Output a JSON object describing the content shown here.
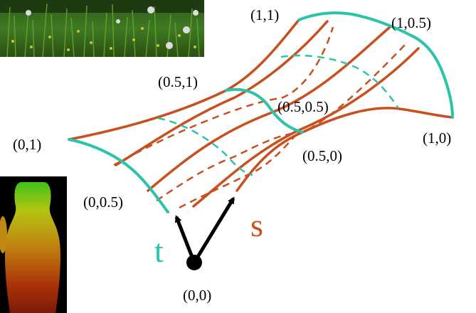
{
  "colors": {
    "s_curve": "#c8501e",
    "t_curve": "#2cc4a8",
    "arrow": "#000000",
    "background": "#ffffff"
  },
  "labels": {
    "p11": "(1,1)",
    "p1_05": "(1,0.5)",
    "p05_1": "(0.5,1)",
    "p05_05": "(0.5,0.5)",
    "p01": "(0,1)",
    "p10": "(1,0)",
    "p05_0": "(0.5,0)",
    "p0_05": "(0,0.5)",
    "p00": "(0,0)"
  },
  "axes": {
    "s": "s",
    "t": "t"
  },
  "images": {
    "top_left": "grass-field-texture",
    "bottom_left": "vase-rendering-texture"
  }
}
